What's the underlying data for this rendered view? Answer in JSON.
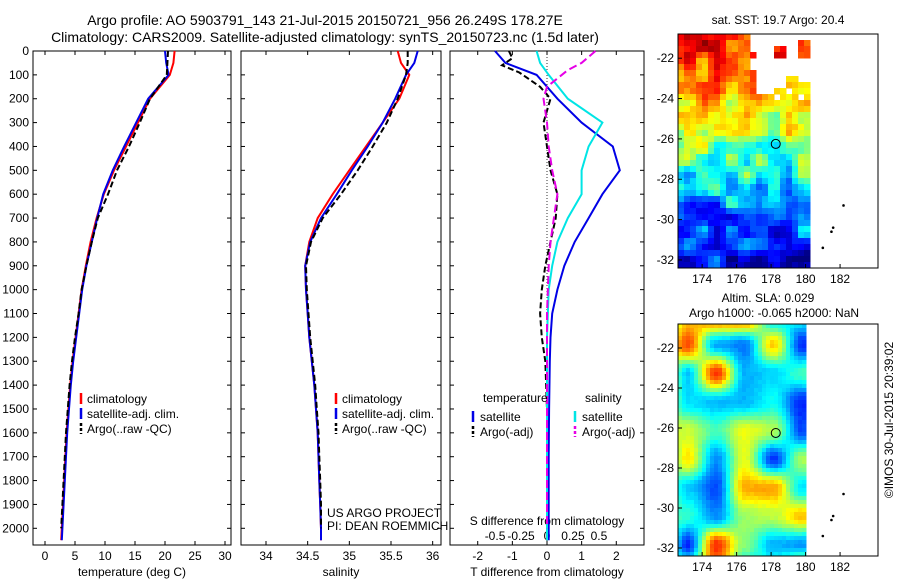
{
  "header": {
    "line1": "Argo profile: AO 5903791_143 21-Jul-2015 20150721_956 26.249S 178.27E",
    "line2": "Climatology: CARS2009. Satellite-adjusted climatology: synTS_20150723.nc (1.5d later)"
  },
  "side_label": "©IMOS 30-Jul-2015 20:39:02",
  "colors": {
    "climatology": "#ff0000",
    "satellite": "#0000e6",
    "argo": "#000000",
    "sal_satellite": "#00e5e5",
    "sal_argo": "#e600e6"
  },
  "chart_data": [
    {
      "type": "line",
      "xlabel": "temperature (deg C)",
      "xlim": [
        -2,
        31
      ],
      "xticks": [
        0,
        5,
        10,
        15,
        20,
        25,
        30
      ],
      "ylim": [
        2070,
        0
      ],
      "yticks": [
        0,
        100,
        200,
        300,
        400,
        500,
        600,
        700,
        800,
        900,
        1000,
        1100,
        1200,
        1300,
        1400,
        1500,
        1600,
        1700,
        1800,
        1900,
        2000
      ],
      "legend": [
        "climatology",
        "satellite-adj. clim.",
        "Argo(..raw -QC)"
      ],
      "legend_position": "lower-right",
      "series": [
        {
          "name": "climatology",
          "color": "#ff0000",
          "dash": "",
          "points": [
            [
              21.6,
              0
            ],
            [
              21.4,
              50
            ],
            [
              20.8,
              100
            ],
            [
              17.5,
              200
            ],
            [
              15.5,
              300
            ],
            [
              13.5,
              400
            ],
            [
              11.5,
              500
            ],
            [
              9.8,
              600
            ],
            [
              8.6,
              700
            ],
            [
              7.6,
              800
            ],
            [
              6.8,
              900
            ],
            [
              6.1,
              1000
            ],
            [
              5.6,
              1100
            ],
            [
              5.1,
              1200
            ],
            [
              4.6,
              1300
            ],
            [
              4.2,
              1400
            ],
            [
              3.9,
              1500
            ],
            [
              3.6,
              1600
            ],
            [
              3.4,
              1700
            ],
            [
              3.2,
              1800
            ],
            [
              3.0,
              1900
            ],
            [
              2.8,
              2000
            ],
            [
              2.7,
              2050
            ]
          ]
        },
        {
          "name": "satellite-adj. clim.",
          "color": "#0000e6",
          "dash": "",
          "points": [
            [
              20.0,
              0
            ],
            [
              20.2,
              50
            ],
            [
              20.6,
              100
            ],
            [
              17.2,
              200
            ],
            [
              15.2,
              300
            ],
            [
              13.2,
              400
            ],
            [
              11.3,
              500
            ],
            [
              9.7,
              600
            ],
            [
              8.7,
              700
            ],
            [
              7.8,
              800
            ],
            [
              6.9,
              900
            ],
            [
              6.2,
              1000
            ],
            [
              5.7,
              1100
            ],
            [
              5.2,
              1200
            ],
            [
              4.7,
              1300
            ],
            [
              4.3,
              1400
            ],
            [
              4.0,
              1500
            ],
            [
              3.7,
              1600
            ],
            [
              3.5,
              1700
            ],
            [
              3.3,
              1800
            ],
            [
              3.1,
              1900
            ],
            [
              2.9,
              2000
            ],
            [
              2.8,
              2050
            ]
          ]
        },
        {
          "name": "Argo(..raw -QC)",
          "color": "#000000",
          "dash": "6,3",
          "points": [
            [
              20.5,
              0
            ],
            [
              20.4,
              50
            ],
            [
              20.3,
              100
            ],
            [
              17.5,
              200
            ],
            [
              15.8,
              300
            ],
            [
              14.0,
              400
            ],
            [
              12.0,
              500
            ],
            [
              10.5,
              600
            ],
            [
              8.8,
              700
            ],
            [
              7.8,
              800
            ],
            [
              6.9,
              900
            ],
            [
              6.1,
              1000
            ],
            [
              5.6,
              1100
            ],
            [
              5.0,
              1200
            ],
            [
              4.5,
              1300
            ],
            [
              4.1,
              1400
            ],
            [
              3.8,
              1500
            ],
            [
              3.5,
              1600
            ],
            [
              3.3,
              1700
            ],
            [
              3.1,
              1800
            ],
            [
              2.9,
              1900
            ],
            [
              2.7,
              2000
            ]
          ]
        }
      ]
    },
    {
      "type": "line",
      "xlabel": "salinity",
      "xlim": [
        33.7,
        36.1
      ],
      "xticks": [
        34,
        34.5,
        35,
        35.5,
        36
      ],
      "ylim": [
        2070,
        0
      ],
      "legend": [
        "climatology",
        "satellite-adj. clim.",
        "Argo(..raw -QC)"
      ],
      "legend_position": "lower-right",
      "annotation": [
        "US ARGO PROJECT",
        "PI: DEAN ROEMMICH"
      ],
      "series": [
        {
          "name": "climatology",
          "color": "#ff0000",
          "dash": "",
          "points": [
            [
              35.58,
              0
            ],
            [
              35.62,
              50
            ],
            [
              35.72,
              100
            ],
            [
              35.6,
              200
            ],
            [
              35.4,
              300
            ],
            [
              35.2,
              400
            ],
            [
              35.0,
              500
            ],
            [
              34.8,
              600
            ],
            [
              34.62,
              700
            ],
            [
              34.52,
              800
            ],
            [
              34.47,
              900
            ],
            [
              34.48,
              1000
            ],
            [
              34.5,
              1100
            ],
            [
              34.52,
              1200
            ],
            [
              34.55,
              1300
            ],
            [
              34.58,
              1400
            ],
            [
              34.6,
              1500
            ],
            [
              34.62,
              1600
            ],
            [
              34.63,
              1700
            ],
            [
              34.64,
              1800
            ],
            [
              34.65,
              1900
            ],
            [
              34.66,
              2000
            ],
            [
              34.66,
              2050
            ]
          ]
        },
        {
          "name": "satellite-adj. clim.",
          "color": "#0000e6",
          "dash": "",
          "points": [
            [
              35.82,
              0
            ],
            [
              35.78,
              50
            ],
            [
              35.68,
              100
            ],
            [
              35.55,
              200
            ],
            [
              35.4,
              300
            ],
            [
              35.22,
              400
            ],
            [
              35.03,
              500
            ],
            [
              34.85,
              600
            ],
            [
              34.66,
              700
            ],
            [
              34.53,
              800
            ],
            [
              34.47,
              900
            ],
            [
              34.48,
              1000
            ],
            [
              34.5,
              1100
            ],
            [
              34.52,
              1200
            ],
            [
              34.55,
              1300
            ],
            [
              34.58,
              1400
            ],
            [
              34.6,
              1500
            ],
            [
              34.62,
              1600
            ],
            [
              34.63,
              1700
            ],
            [
              34.64,
              1800
            ],
            [
              34.65,
              1900
            ],
            [
              34.66,
              2000
            ],
            [
              34.66,
              2050
            ]
          ]
        },
        {
          "name": "Argo(..raw -QC)",
          "color": "#000000",
          "dash": "6,3",
          "points": [
            [
              35.7,
              0
            ],
            [
              35.7,
              50
            ],
            [
              35.68,
              100
            ],
            [
              35.58,
              200
            ],
            [
              35.45,
              300
            ],
            [
              35.28,
              400
            ],
            [
              35.1,
              500
            ],
            [
              34.9,
              600
            ],
            [
              34.68,
              700
            ],
            [
              34.54,
              800
            ],
            [
              34.48,
              900
            ],
            [
              34.49,
              1000
            ],
            [
              34.51,
              1100
            ],
            [
              34.53,
              1200
            ],
            [
              34.56,
              1300
            ],
            [
              34.59,
              1400
            ],
            [
              34.61,
              1500
            ],
            [
              34.63,
              1600
            ],
            [
              34.64,
              1700
            ],
            [
              34.65,
              1800
            ],
            [
              34.66,
              1900
            ],
            [
              34.66,
              2000
            ]
          ]
        }
      ]
    },
    {
      "type": "line",
      "xlabel": "T difference from climatology",
      "x2label": "S difference from climatology",
      "xlim": [
        -2.8,
        2.8
      ],
      "xticks": [
        -2,
        -1,
        0,
        1,
        2
      ],
      "x2ticks": [
        "-0.5",
        "-0.25",
        "0",
        "0.25",
        "0.5"
      ],
      "ylim": [
        2070,
        0
      ],
      "legend_left_title": "temperature",
      "legend_right_title": "salinity",
      "legend": [
        "satellite",
        "Argo(-adj)",
        "satellite",
        "Argo(-adj)"
      ],
      "series": [
        {
          "name": "temperature satellite",
          "color": "#0000e6",
          "dash": "",
          "points": [
            [
              -1.5,
              0
            ],
            [
              -1.2,
              50
            ],
            [
              -0.3,
              100
            ],
            [
              0.3,
              200
            ],
            [
              1.0,
              300
            ],
            [
              1.9,
              400
            ],
            [
              2.1,
              500
            ],
            [
              1.6,
              600
            ],
            [
              1.2,
              700
            ],
            [
              0.8,
              800
            ],
            [
              0.5,
              900
            ],
            [
              0.3,
              1000
            ],
            [
              0.15,
              1100
            ],
            [
              0.1,
              1200
            ],
            [
              0.08,
              1300
            ],
            [
              0.06,
              1500
            ],
            [
              0.05,
              1700
            ],
            [
              0.05,
              1900
            ],
            [
              0.05,
              2050
            ]
          ]
        },
        {
          "name": "temperature Argo(-adj)",
          "color": "#000000",
          "dash": "6,3",
          "points": [
            [
              -1.1,
              0
            ],
            [
              -1.0,
              30
            ],
            [
              -1.3,
              60
            ],
            [
              -0.8,
              90
            ],
            [
              -0.2,
              150
            ],
            [
              0.1,
              200
            ],
            [
              -0.1,
              300
            ],
            [
              0.0,
              400
            ],
            [
              0.1,
              500
            ],
            [
              0.3,
              600
            ],
            [
              0.25,
              700
            ],
            [
              0.1,
              800
            ],
            [
              -0.05,
              900
            ],
            [
              -0.15,
              1000
            ],
            [
              -0.2,
              1100
            ],
            [
              -0.15,
              1200
            ],
            [
              -0.05,
              1300
            ],
            [
              0.0,
              1500
            ],
            [
              0.0,
              1700
            ],
            [
              0.0,
              1900
            ],
            [
              0.0,
              2000
            ]
          ]
        },
        {
          "name": "salinity satellite",
          "color": "#00e5e5",
          "dash": "",
          "points": [
            [
              -0.3,
              0
            ],
            [
              -0.2,
              50
            ],
            [
              0.05,
              100
            ],
            [
              0.6,
              200
            ],
            [
              1.6,
              300
            ],
            [
              1.2,
              400
            ],
            [
              1.0,
              500
            ],
            [
              1.0,
              600
            ],
            [
              0.6,
              700
            ],
            [
              0.3,
              800
            ],
            [
              0.15,
              900
            ],
            [
              0.05,
              1000
            ],
            [
              0.0,
              1200
            ],
            [
              0.0,
              1500
            ],
            [
              0.0,
              1800
            ],
            [
              0.0,
              2050
            ]
          ]
        },
        {
          "name": "salinity Argo(-adj)",
          "color": "#e600e6",
          "dash": "8,4",
          "points": [
            [
              1.4,
              0
            ],
            [
              1.0,
              50
            ],
            [
              0.6,
              80
            ],
            [
              0.0,
              150
            ],
            [
              -0.1,
              200
            ],
            [
              0.0,
              300
            ],
            [
              0.05,
              400
            ],
            [
              0.15,
              500
            ],
            [
              0.3,
              600
            ],
            [
              0.2,
              700
            ],
            [
              0.1,
              800
            ],
            [
              0.05,
              900
            ],
            [
              0.0,
              1100
            ],
            [
              0.0,
              1400
            ],
            [
              0.0,
              1700
            ],
            [
              0.0,
              2000
            ]
          ]
        }
      ]
    },
    {
      "type": "heatmap",
      "title": "sat. SST: 19.7  Argo: 20.4",
      "xticks": [
        174,
        176,
        178,
        180,
        182
      ],
      "yticks": [
        -22,
        -24,
        -26,
        -28,
        -30,
        -32
      ],
      "xlim": [
        172.6,
        184.2
      ],
      "ylim": [
        -32.4,
        -20.8
      ],
      "marker": [
        178.27,
        -26.249
      ]
    },
    {
      "type": "heatmap",
      "title": "Altim. SLA: 0.029",
      "subtitle": "Argo h1000: -0.065 h2000: NaN",
      "xticks": [
        174,
        176,
        178,
        180,
        182
      ],
      "yticks": [
        -22,
        -24,
        -26,
        -28,
        -30,
        -32
      ],
      "xlim": [
        172.6,
        184.2
      ],
      "ylim": [
        -32.4,
        -20.8
      ],
      "marker": [
        178.27,
        -26.249
      ]
    }
  ]
}
